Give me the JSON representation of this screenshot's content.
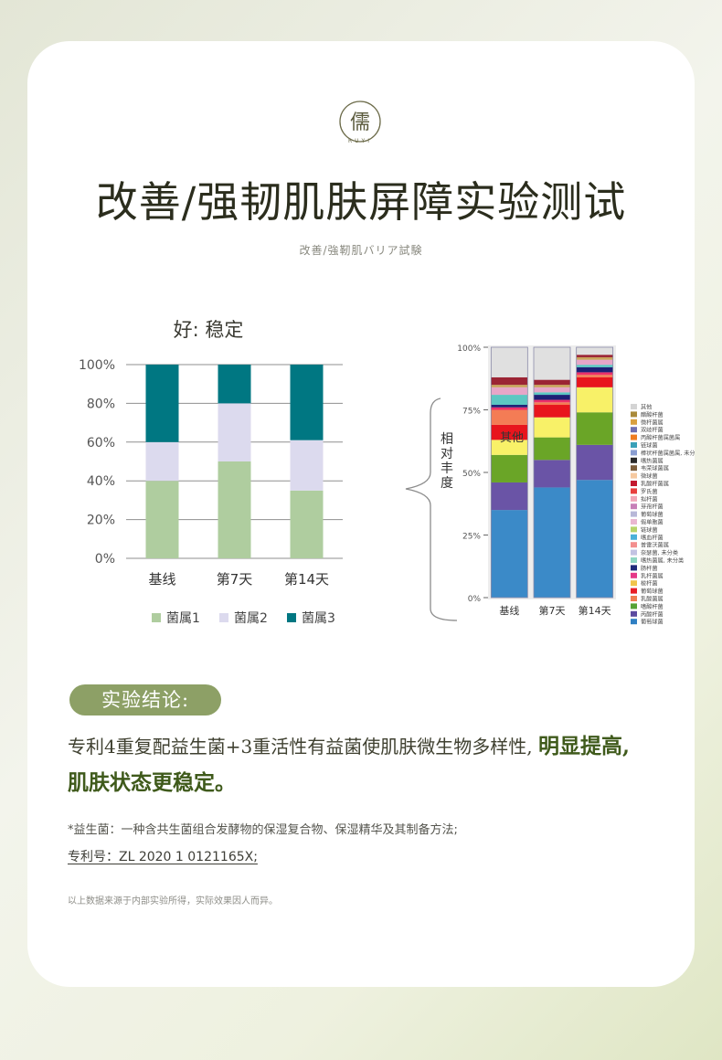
{
  "header": {
    "logo_glyph": "儒",
    "logo_word": "RUYI",
    "title": "改善/强韧肌肤屏障实验测试",
    "subtitle": "改善/強靭肌バリア試験"
  },
  "chart_data": [
    {
      "type": "bar",
      "stacked": true,
      "title": "好: 稳定",
      "categories": [
        "基线",
        "第7天",
        "第14天"
      ],
      "ylim": [
        0,
        100
      ],
      "yticks": [
        "0%",
        "20%",
        "40%",
        "60%",
        "80%",
        "100%"
      ],
      "grid": true,
      "legend_position": "bottom",
      "series": [
        {
          "name": "菌属1",
          "color": "#afcd9f",
          "values": [
            40,
            50,
            35
          ]
        },
        {
          "name": "菌属2",
          "color": "#dcdaee",
          "values": [
            20,
            30,
            26
          ]
        },
        {
          "name": "菌属3",
          "color": "#007782",
          "values": [
            40,
            20,
            39
          ]
        }
      ]
    },
    {
      "type": "bar",
      "stacked": true,
      "ylabel": "相对丰度",
      "categories": [
        "基线",
        "第7天",
        "第14天"
      ],
      "ylim": [
        0,
        1
      ],
      "yticks": [
        "0%",
        "25%",
        "50%",
        "75%",
        "100%"
      ],
      "inner_label": "其他",
      "legend_position": "right",
      "series": [
        {
          "color": "#3b8ac8",
          "values": [
            0.35,
            0.44,
            0.47
          ]
        },
        {
          "color": "#6a54a6",
          "values": [
            0.11,
            0.11,
            0.14
          ]
        },
        {
          "color": "#6aa527",
          "values": [
            0.11,
            0.09,
            0.13
          ]
        },
        {
          "color": "#f8f168",
          "values": [
            0.06,
            0.08,
            0.1
          ]
        },
        {
          "color": "#e8151d",
          "values": [
            0.06,
            0.05,
            0.04
          ]
        },
        {
          "color": "#f47c55",
          "values": [
            0.06,
            0.01,
            0.01
          ]
        },
        {
          "color": "#ec2f6a",
          "values": [
            0.01,
            0.01,
            0.01
          ]
        },
        {
          "color": "#1d1f75",
          "values": [
            0.01,
            0.02,
            0.02
          ]
        },
        {
          "color": "#5cc7c2",
          "values": [
            0.04,
            0.01,
            0.01
          ]
        },
        {
          "color": "#e7a6c8",
          "values": [
            0.03,
            0.02,
            0.02
          ]
        },
        {
          "color": "#c9a45a",
          "values": [
            0.01,
            0.01,
            0.01
          ]
        },
        {
          "color": "#9b2434",
          "values": [
            0.03,
            0.02,
            0.01
          ]
        },
        {
          "color": "#e0e0e0",
          "values": [
            0.12,
            0.13,
            0.03
          ]
        }
      ],
      "legend_colors": [
        "#d4d4d4",
        "#a98a3a",
        "#d9a03f",
        "#6f6fb0",
        "#ef7d21",
        "#3aa0b7",
        "#8a9ed2",
        "#2a2a2a",
        "#7d5e3c",
        "#f6c9a0",
        "#c3192f",
        "#e83f3f",
        "#f1a6b8",
        "#c77fb8",
        "#b8b8d8",
        "#eab7d1",
        "#b7d36a",
        "#4ab0d8",
        "#f38f8f",
        "#c3c3e3",
        "#8fd6c3",
        "#1f2a7a",
        "#e53888",
        "#f0c44b",
        "#e81f27",
        "#ef7f52",
        "#56a335",
        "#5b4aa0",
        "#2f7fc3"
      ]
    }
  ],
  "legend2_text": "其他\n醋酸杆菌\n微杆菌属\n双歧杆菌\n丙酸杆菌属菌属\n链球菌\n棒状杆菌属菌属, 未分类\n嗜热菌属\n韦荣球菌属\n微球菌\n乳酸杆菌属\n罗氏菌\n拟杆菌\n芽孢杆菌\n葡萄球菌\n假单胞菌\n链球菌\n嗜血杆菌\n普雷沃菌属\n奈瑟菌, 未分类\n嗜热菌属, 未分类\n肠杆菌\n乳杆菌属\n梭杆菌\n葡萄球菌\n乳酸菌属\n嗜酸杆菌\n丙酸杆菌\n葡萄球菌",
  "conclusion": {
    "label": "实验结论:",
    "line1_normal": "专利4重复配益生菌+3重活性有益菌使肌肤微生物多样性,",
    "line1_highlight": "明显提高,",
    "line2_highlight": "肌肤状态更稳定。"
  },
  "footnote": "*益生菌：一种含共生菌组合发酵物的保湿复合物、保湿精华及其制备方法;",
  "patent": "专利号：ZL 2020 1 0121165X;",
  "disclaimer": "以上数据来源于内部实验所得，实际效果因人而异。"
}
